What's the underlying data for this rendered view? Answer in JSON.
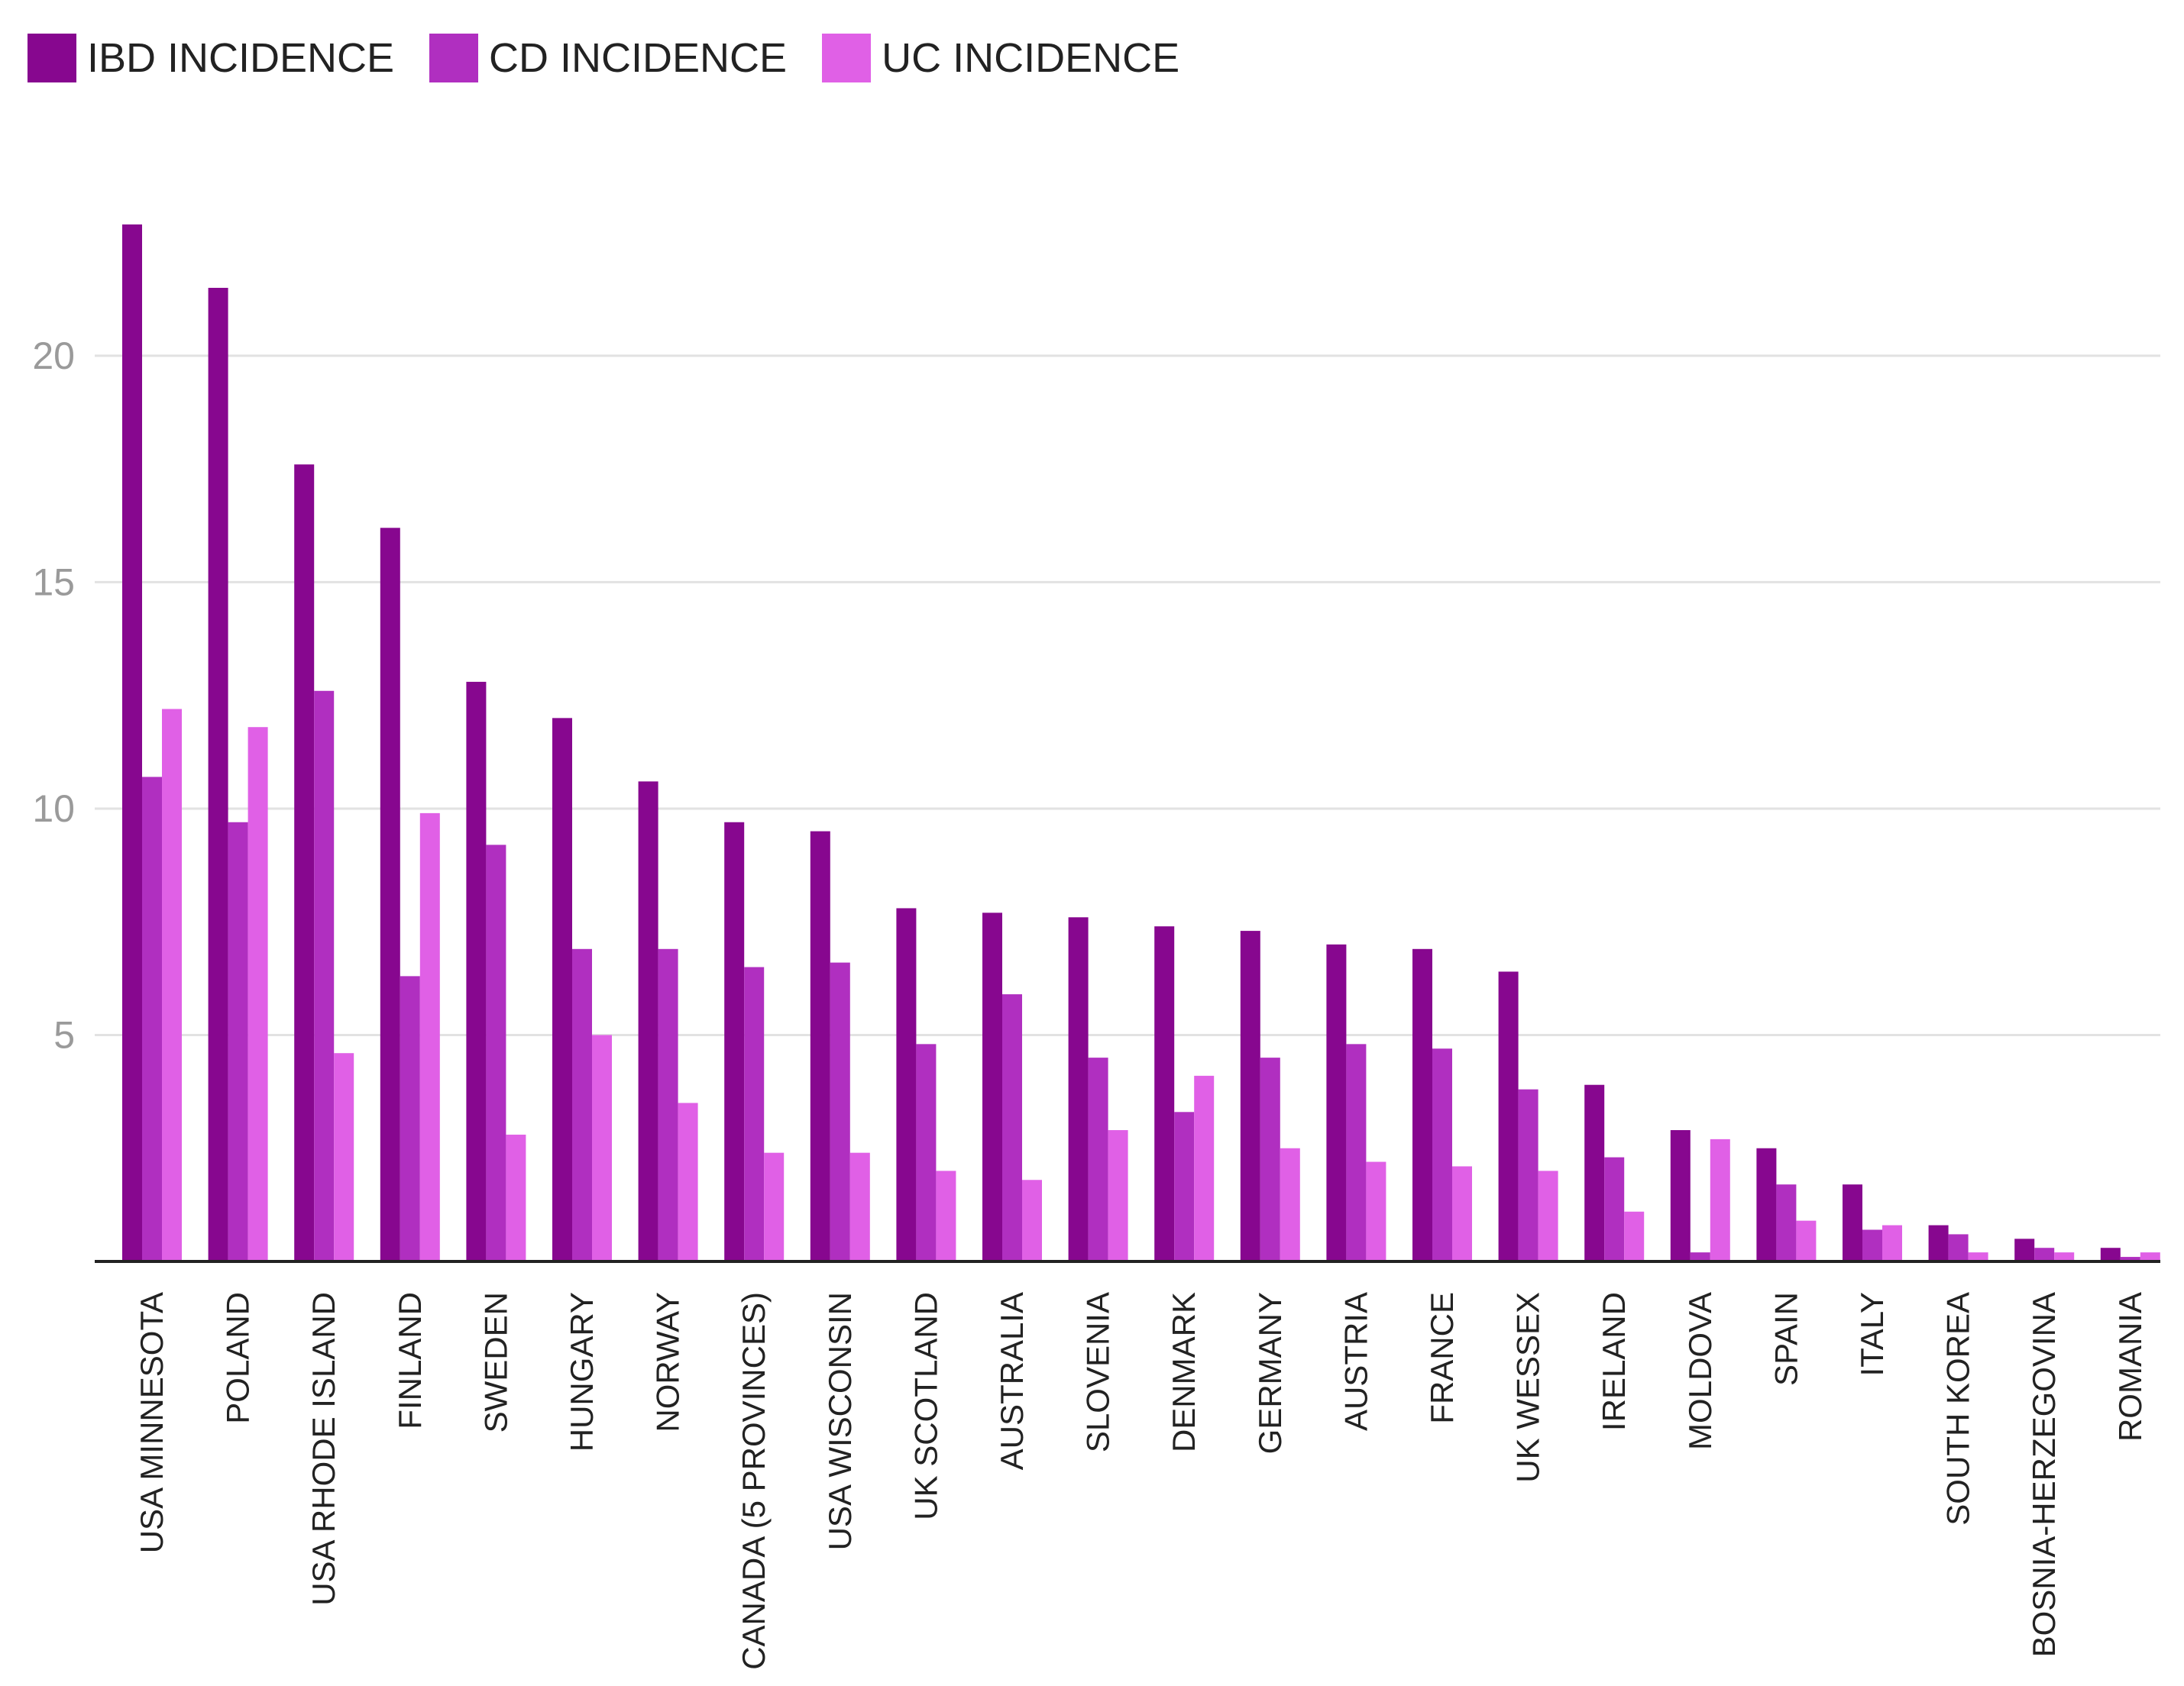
{
  "chart_data": {
    "type": "bar",
    "title": "",
    "xlabel": "",
    "ylabel": "",
    "ylim": [
      0,
      23
    ],
    "yticks": [
      5,
      10,
      15,
      20
    ],
    "grid": true,
    "legend_position": "top-left",
    "categories": [
      "USA MINNESOTA",
      "POLAND",
      "USA RHODE ISLAND",
      "FINLAND",
      "SWEDEN",
      "HUNGARY",
      "NORWAY",
      "CANADA (5 PROVINCES)",
      "USA WISCONSIN",
      "UK SCOTLAND",
      "AUSTRALIA",
      "SLOVENIA",
      "DENMARK",
      "GERMANY",
      "AUSTRIA",
      "FRANCE",
      "UK WESSEX",
      "IRELAND",
      "MOLDOVA",
      "SPAIN",
      "ITALY",
      "SOUTH KOREA",
      "BOSNIA-HERZEGOVINA",
      "ROMANIA"
    ],
    "series": [
      {
        "name": "IBD INCIDENCE",
        "color": "#87078f",
        "values": [
          22.9,
          21.5,
          17.6,
          16.2,
          12.8,
          12.0,
          10.6,
          9.7,
          9.5,
          7.8,
          7.7,
          7.6,
          7.4,
          7.3,
          7.0,
          6.9,
          6.4,
          3.9,
          2.9,
          2.5,
          1.7,
          0.8,
          0.5,
          0.3
        ]
      },
      {
        "name": "CD INCIDENCE",
        "color": "#b02fc0",
        "values": [
          10.7,
          9.7,
          12.6,
          6.3,
          9.2,
          6.9,
          6.9,
          6.5,
          6.6,
          4.8,
          5.9,
          4.5,
          3.3,
          4.5,
          4.8,
          4.7,
          3.8,
          2.3,
          0.2,
          1.7,
          0.7,
          0.6,
          0.3,
          0.1
        ]
      },
      {
        "name": "UC INCIDENCE",
        "color": "#e060e6",
        "values": [
          12.2,
          11.8,
          4.6,
          9.9,
          2.8,
          5.0,
          3.5,
          2.4,
          2.4,
          2.0,
          1.8,
          2.9,
          4.1,
          2.5,
          2.2,
          2.1,
          2.0,
          1.1,
          2.7,
          0.9,
          0.8,
          0.2,
          0.2,
          0.2
        ]
      }
    ]
  }
}
